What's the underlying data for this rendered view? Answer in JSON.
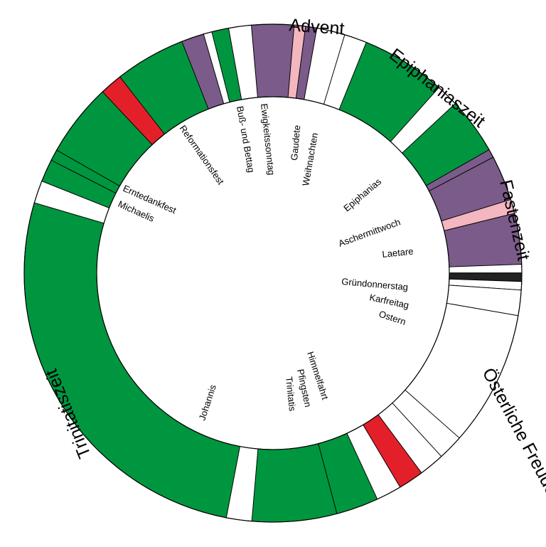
{
  "chart_data": {
    "type": "donut",
    "colors": {
      "green": "#00963f",
      "purple": "#7b5b89",
      "pink": "#f4b6bf",
      "red": "#e3202a",
      "white": "#ffffff",
      "black": "#222222"
    },
    "seasons": [
      {
        "name": "Advent"
      },
      {
        "name": "Epiphaniaszeit"
      },
      {
        "name": "Fastenzeit"
      },
      {
        "name": "Österliche Freudenzeit"
      },
      {
        "name": "Trinitatiszeit"
      }
    ],
    "feasts": [
      {
        "name": "Gaudete"
      },
      {
        "name": "Weihnachten"
      },
      {
        "name": "Epiphanias"
      },
      {
        "name": "Aschermittwoch"
      },
      {
        "name": "Laetare"
      },
      {
        "name": "Gründonnerstag"
      },
      {
        "name": "Karfreitag"
      },
      {
        "name": "Ostern"
      },
      {
        "name": "Himmelfahrt"
      },
      {
        "name": "Pfingsten"
      },
      {
        "name": "Trinitatis"
      },
      {
        "name": "Johannis"
      },
      {
        "name": "Michaelis"
      },
      {
        "name": "Erntedankfest"
      },
      {
        "name": "Reformationsfest"
      },
      {
        "name": "Buß- und Bettag"
      },
      {
        "name": "Ewigkeitssonntag"
      }
    ],
    "segments": [
      {
        "color": "purple",
        "weeks": 1.5
      },
      {
        "color": "pink",
        "weeks": 0.4
      },
      {
        "color": "purple",
        "weeks": 0.4
      },
      {
        "color": "white",
        "weeks": 1.0
      },
      {
        "color": "white",
        "weeks": 0.8
      },
      {
        "color": "green",
        "weeks": 3.0
      },
      {
        "color": "white",
        "weeks": 0.8
      },
      {
        "color": "green",
        "weeks": 2.0
      },
      {
        "color": "purple",
        "weeks": 0.3
      },
      {
        "color": "purple",
        "weeks": 1.6
      },
      {
        "color": "pink",
        "weeks": 0.5
      },
      {
        "color": "purple",
        "weeks": 1.8
      },
      {
        "color": "white",
        "weeks": 0.3
      },
      {
        "color": "black",
        "weeks": 0.3
      },
      {
        "color": "white",
        "weeks": 0.3
      },
      {
        "color": "white",
        "weeks": 0.9
      },
      {
        "color": "white",
        "weeks": 4.8
      },
      {
        "color": "white",
        "weeks": 0.9
      },
      {
        "color": "white",
        "weeks": 0.9
      },
      {
        "color": "red",
        "weeks": 0.9
      },
      {
        "color": "white",
        "weeks": 0.9
      },
      {
        "color": "green",
        "weeks": 1.5
      },
      {
        "color": "green",
        "weeks": 3.0
      },
      {
        "color": "white",
        "weeks": 0.9
      },
      {
        "color": "green",
        "weeks": 14.5
      },
      {
        "color": "white",
        "weeks": 0.8
      },
      {
        "color": "green",
        "weeks": 0.8
      },
      {
        "color": "green",
        "weeks": 0.4
      },
      {
        "color": "green",
        "weeks": 2.6
      },
      {
        "color": "red",
        "weeks": 0.8
      },
      {
        "color": "green",
        "weeks": 2.5
      },
      {
        "color": "purple",
        "weeks": 0.8
      },
      {
        "color": "white",
        "weeks": 0.3
      },
      {
        "color": "green",
        "weeks": 0.6
      },
      {
        "color": "white",
        "weeks": 0.8
      }
    ]
  }
}
